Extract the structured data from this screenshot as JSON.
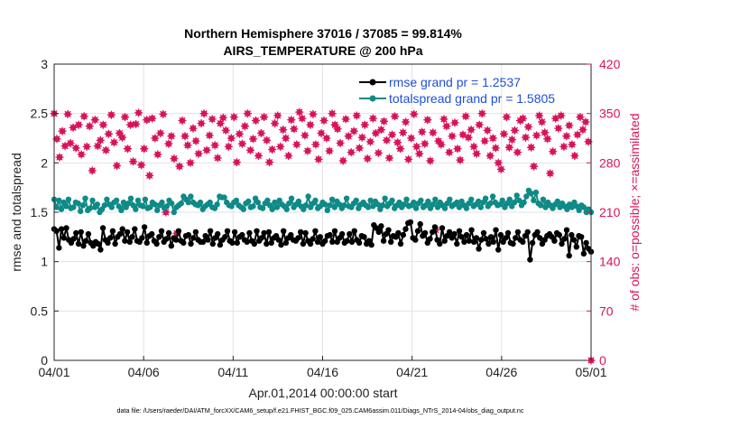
{
  "chart_data": {
    "type": "line",
    "title": "Northern Hemisphere 37016 / 37085 = 99.814%",
    "subtitle": "AIRS_TEMPERATURE @ 200 hPa",
    "xlabel": "Apr.01,2014 00:00:00 start",
    "ylabel_left": "rmse and totalspread",
    "ylabel_right": "# of obs: o=possible; ×=assimilated",
    "footnote": "data file: /Users/raeder/DAI/ATM_forcXX/CAM6_setup/f.e21.FHIST_BGC.f09_025.CAM6assim.011/Diags_NTrS_2014-04/obs_diag_output.nc",
    "xlim": [
      0,
      30
    ],
    "ylim_left": [
      0,
      3
    ],
    "ylim_right": [
      0,
      420
    ],
    "x_ticks": [
      0,
      5,
      10,
      15,
      20,
      25,
      30
    ],
    "x_tick_labels": [
      "04/01",
      "04/06",
      "04/11",
      "04/16",
      "04/21",
      "04/26",
      "05/01"
    ],
    "y_left_ticks": [
      0,
      0.5,
      1,
      1.5,
      2,
      2.5,
      3
    ],
    "y_left_tick_labels": [
      "0",
      "0.5",
      "1",
      "1.5",
      "2",
      "2.5",
      "3"
    ],
    "y_right_ticks": [
      0,
      70,
      140,
      210,
      280,
      350,
      420
    ],
    "y_right_tick_labels": [
      "0",
      "70",
      "140",
      "210",
      "280",
      "350",
      "420"
    ],
    "grid": true,
    "legend_position": "top-right",
    "colors": {
      "rmse": "#000000",
      "spread": "#0e8a87",
      "obs": "#d8135a"
    },
    "series": [
      {
        "name": "rmse grand pr = 1.2537",
        "axis": "left",
        "values": [
          1.33,
          1.31,
          1.14,
          1.33,
          1.24,
          1.34,
          1.22,
          1.19,
          1.23,
          1.29,
          1.18,
          1.3,
          1.16,
          1.21,
          1.28,
          1.19,
          1.16,
          1.2,
          1.18,
          1.12,
          1.34,
          1.22,
          1.19,
          1.24,
          1.31,
          1.18,
          1.25,
          1.28,
          1.33,
          1.21,
          1.3,
          1.2,
          1.25,
          1.33,
          1.21,
          1.2,
          1.24,
          1.35,
          1.19,
          1.26,
          1.28,
          1.21,
          1.18,
          1.25,
          1.31,
          1.2,
          1.23,
          1.29,
          1.16,
          1.24,
          1.22,
          1.31,
          1.21,
          1.19,
          1.26,
          1.27,
          1.18,
          1.24,
          1.3,
          1.22,
          1.2,
          1.2,
          1.26,
          1.22,
          1.31,
          1.18,
          1.24,
          1.28,
          1.17,
          1.22,
          1.25,
          1.31,
          1.21,
          1.19,
          1.3,
          1.19,
          1.25,
          1.27,
          1.22,
          1.2,
          1.29,
          1.21,
          1.18,
          1.31,
          1.21,
          1.24,
          1.29,
          1.18,
          1.3,
          1.19,
          1.24,
          1.26,
          1.22,
          1.17,
          1.31,
          1.19,
          1.24,
          1.27,
          1.22,
          1.21,
          1.24,
          1.3,
          1.18,
          1.29,
          1.21,
          1.18,
          1.23,
          1.31,
          1.2,
          1.25,
          1.18,
          1.21,
          1.26,
          1.27,
          1.2,
          1.31,
          1.2,
          1.24,
          1.28,
          1.19,
          1.21,
          1.28,
          1.2,
          1.31,
          1.22,
          1.19,
          1.26,
          1.25,
          1.18,
          1.21,
          1.17,
          1.37,
          1.34,
          1.3,
          1.36,
          1.21,
          1.28,
          1.32,
          1.2,
          1.26,
          1.25,
          1.29,
          1.18,
          1.27,
          1.33,
          1.39,
          1.4,
          1.24,
          1.22,
          1.31,
          1.38,
          1.26,
          1.29,
          1.19,
          1.23,
          1.3,
          1.35,
          1.22,
          1.18,
          1.34,
          1.21,
          1.26,
          1.3,
          1.24,
          1.28,
          1.18,
          1.31,
          1.25,
          1.2,
          1.27,
          1.21,
          1.32,
          1.2,
          1.24,
          1.13,
          1.22,
          1.29,
          1.23,
          1.18,
          1.25,
          1.2,
          1.32,
          1.12,
          1.27,
          1.2,
          1.24,
          1.29,
          1.19,
          1.18,
          1.24,
          1.3,
          1.22,
          1.2,
          1.26,
          1.3,
          1.02,
          1.19,
          1.27,
          1.3,
          1.24,
          1.18,
          1.22,
          1.26,
          1.28,
          1.25,
          1.21,
          1.29,
          1.27,
          1.18,
          1.23,
          1.32,
          1.06,
          1.27,
          1.22,
          1.15,
          1.26,
          1.25,
          1.08,
          1.19,
          1.13,
          1.1
        ]
      },
      {
        "name": "totalspread grand pr = 1.5805",
        "axis": "left",
        "values": [
          1.63,
          1.55,
          1.62,
          1.53,
          1.6,
          1.56,
          1.63,
          1.54,
          1.55,
          1.6,
          1.59,
          1.51,
          1.57,
          1.64,
          1.52,
          1.54,
          1.62,
          1.55,
          1.58,
          1.5,
          1.53,
          1.57,
          1.63,
          1.58,
          1.55,
          1.6,
          1.62,
          1.56,
          1.52,
          1.6,
          1.55,
          1.59,
          1.64,
          1.57,
          1.53,
          1.62,
          1.57,
          1.56,
          1.63,
          1.54,
          1.55,
          1.6,
          1.58,
          1.52,
          1.57,
          1.6,
          1.54,
          1.56,
          1.62,
          1.59,
          1.5,
          1.55,
          1.57,
          1.59,
          1.66,
          1.63,
          1.6,
          1.66,
          1.6,
          1.58,
          1.57,
          1.6,
          1.53,
          1.56,
          1.58,
          1.6,
          1.55,
          1.54,
          1.58,
          1.66,
          1.65,
          1.65,
          1.6,
          1.57,
          1.56,
          1.6,
          1.62,
          1.57,
          1.55,
          1.53,
          1.59,
          1.61,
          1.55,
          1.56,
          1.64,
          1.6,
          1.55,
          1.54,
          1.59,
          1.62,
          1.57,
          1.53,
          1.6,
          1.55,
          1.62,
          1.58,
          1.56,
          1.53,
          1.59,
          1.64,
          1.55,
          1.58,
          1.61,
          1.56,
          1.53,
          1.57,
          1.66,
          1.55,
          1.59,
          1.62,
          1.54,
          1.56,
          1.6,
          1.58,
          1.52,
          1.57,
          1.63,
          1.55,
          1.61,
          1.58,
          1.54,
          1.57,
          1.64,
          1.56,
          1.55,
          1.59,
          1.62,
          1.54,
          1.58,
          1.6,
          1.57,
          1.55,
          1.62,
          1.56,
          1.61,
          1.58,
          1.53,
          1.57,
          1.64,
          1.56,
          1.59,
          1.62,
          1.54,
          1.57,
          1.6,
          1.55,
          1.58,
          1.63,
          1.56,
          1.57,
          1.6,
          1.54,
          1.59,
          1.62,
          1.55,
          1.57,
          1.61,
          1.54,
          1.58,
          1.63,
          1.55,
          1.6,
          1.57,
          1.54,
          1.59,
          1.63,
          1.56,
          1.58,
          1.6,
          1.55,
          1.61,
          1.57,
          1.54,
          1.59,
          1.63,
          1.56,
          1.58,
          1.61,
          1.55,
          1.6,
          1.64,
          1.56,
          1.59,
          1.66,
          1.6,
          1.57,
          1.58,
          1.62,
          1.55,
          1.59,
          1.63,
          1.56,
          1.6,
          1.67,
          1.62,
          1.57,
          1.6,
          1.66,
          1.72,
          1.69,
          1.62,
          1.7,
          1.59,
          1.57,
          1.63,
          1.55,
          1.6,
          1.57,
          1.54,
          1.58,
          1.61,
          1.55,
          1.59,
          1.56,
          1.53,
          1.58,
          1.55,
          1.6,
          1.56,
          1.52,
          1.57,
          1.55,
          1.5,
          1.53,
          1.5
        ]
      },
      {
        "name": "# of obs assimilated",
        "axis": "right",
        "values": [
          350,
          314,
          288,
          325,
          304,
          349,
          308,
          330,
          301,
          334,
          292,
          346,
          303,
          332,
          269,
          341,
          304,
          312,
          334,
          298,
          321,
          348,
          309,
          276,
          322,
          316,
          345,
          300,
          334,
          282,
          335,
          351,
          277,
          300,
          341,
          262,
          343,
          315,
          292,
          322,
          349,
          210,
          307,
          318,
          286,
          180,
          275,
          340,
          318,
          305,
          280,
          329,
          311,
          293,
          336,
          350,
          298,
          319,
          342,
          305,
          287,
          336,
          344,
          326,
          303,
          315,
          345,
          281,
          321,
          307,
          332,
          350,
          298,
          314,
          340,
          290,
          322,
          345,
          312,
          281,
          299,
          336,
          347,
          303,
          327,
          315,
          290,
          341,
          328,
          306,
          352,
          343,
          319,
          297,
          334,
          349,
          306,
          285,
          322,
          340,
          315,
          297,
          350,
          334,
          328,
          308,
          283,
          342,
          318,
          295,
          325,
          347,
          301,
          316,
          334,
          286,
          310,
          343,
          322,
          294,
          327,
          339,
          312,
          287,
          320,
          346,
          309,
          300,
          323,
          338,
          285,
          315,
          349,
          303,
          293,
          324,
          307,
          341,
          283,
          323,
          185,
          311,
          306,
          342,
          332,
          295,
          318,
          337,
          300,
          284,
          320,
          346,
          316,
          327,
          303,
          293,
          334,
          350,
          311,
          326,
          290,
          315,
          301,
          280,
          271,
          321,
          345,
          302,
          313,
          326,
          295,
          340,
          343,
          316,
          331,
          302,
          275,
          319,
          347,
          338,
          323,
          314,
          265,
          296,
          343,
          329,
          347,
          303,
          318,
          333,
          306,
          290,
          320,
          345,
          327,
          338,
          310,
          0
        ]
      }
    ]
  }
}
